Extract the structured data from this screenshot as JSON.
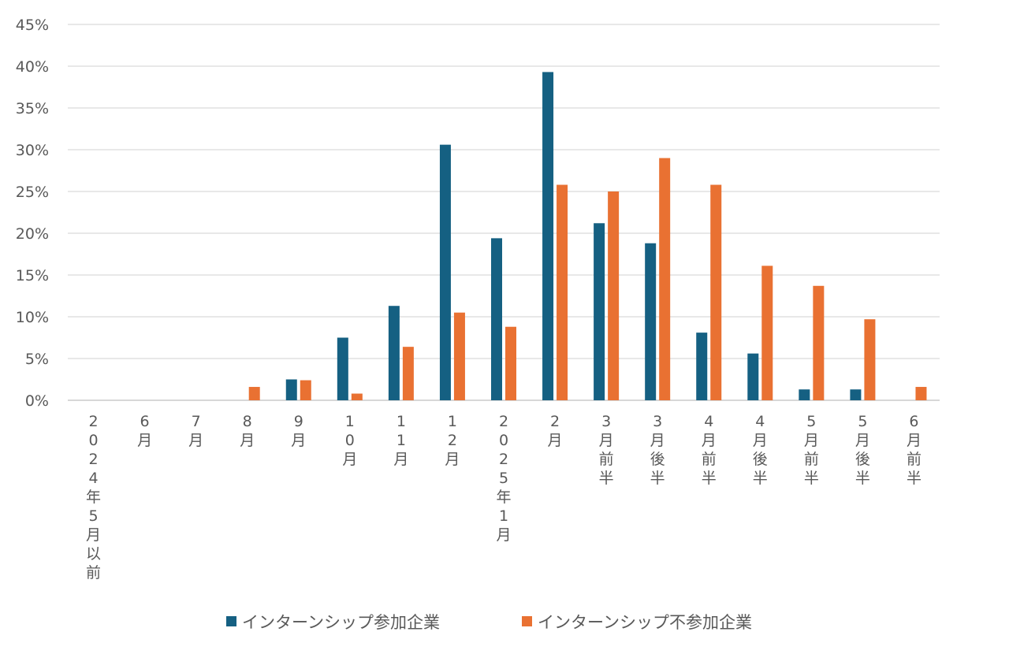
{
  "chart_data": {
    "type": "bar",
    "title": "",
    "xlabel": "",
    "ylabel": "",
    "ylim": [
      0,
      45
    ],
    "y_ticks": [
      "0%",
      "5%",
      "10%",
      "15%",
      "20%",
      "25%",
      "30%",
      "35%",
      "40%",
      "45%"
    ],
    "grid": true,
    "legend_position": "bottom",
    "categories": [
      "2024年5月以前",
      "6月",
      "7月",
      "8月",
      "9月",
      "10月",
      "11月",
      "12月",
      "2025年1月",
      "2月",
      "3月前半",
      "3月後半",
      "4月前半",
      "4月後半",
      "5月前半",
      "5月後半",
      "6月前半"
    ],
    "series": [
      {
        "name": "インターンシップ参加企業",
        "color": "#156082",
        "values": [
          0,
          0,
          0,
          0,
          2.5,
          7.5,
          11.3,
          30.6,
          19.4,
          39.3,
          21.2,
          18.8,
          8.1,
          5.6,
          1.3,
          1.3,
          0
        ]
      },
      {
        "name": "インターンシップ不参加企業",
        "color": "#E97132",
        "values": [
          0,
          0,
          0,
          1.6,
          2.4,
          0.8,
          6.4,
          10.5,
          8.8,
          25.8,
          25.0,
          29.0,
          25.8,
          16.1,
          13.7,
          9.7,
          1.6
        ]
      }
    ]
  }
}
